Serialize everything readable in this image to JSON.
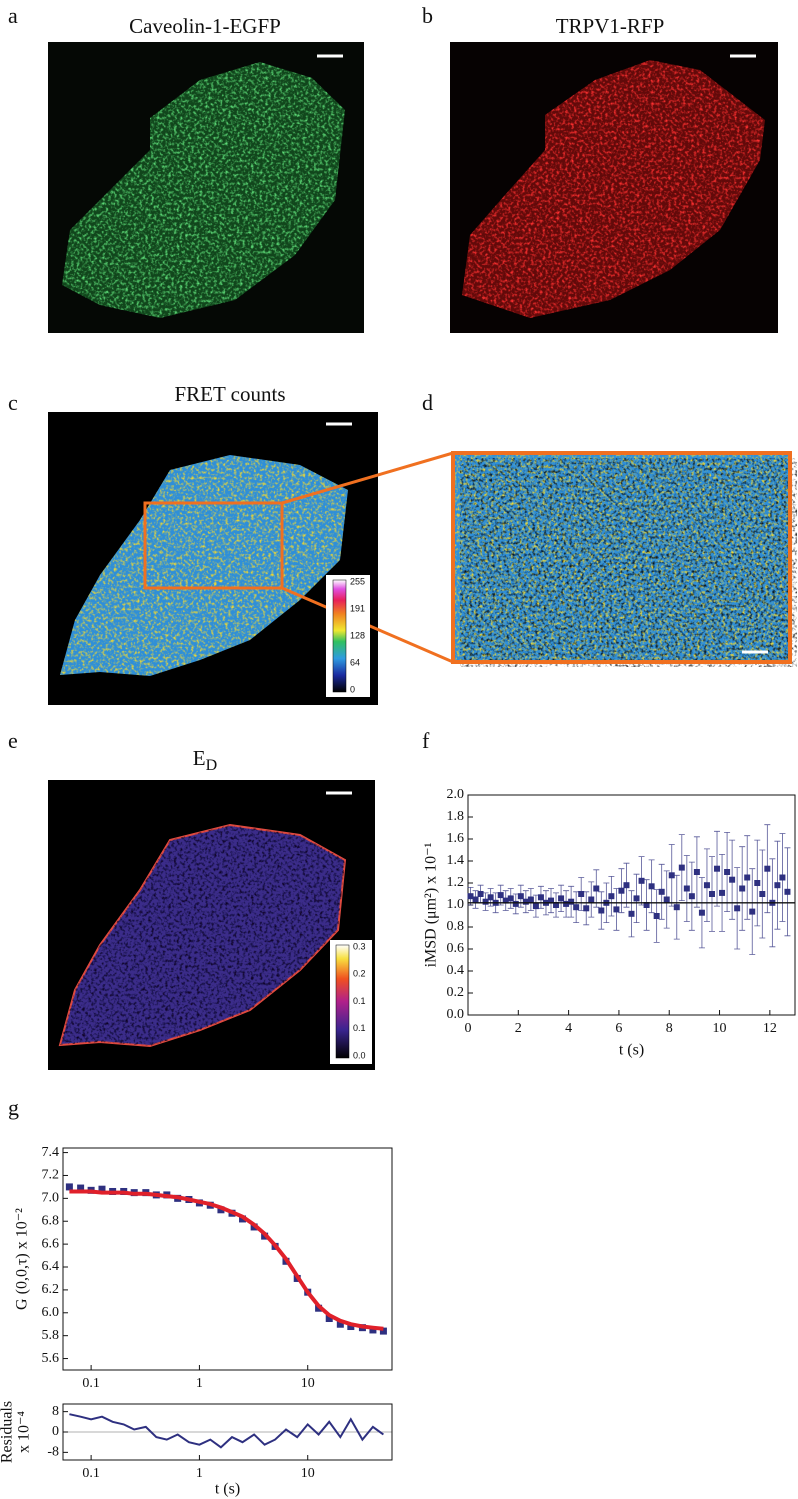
{
  "panels": {
    "a": {
      "letter": "a",
      "title": "Caveolin-1-EGFP"
    },
    "b": {
      "letter": "b",
      "title": "TRPV1-RFP"
    },
    "c": {
      "letter": "c",
      "title": "FRET counts",
      "colorbar_labels": [
        "255",
        "191",
        "128",
        "64",
        "0"
      ]
    },
    "d": {
      "letter": "d"
    },
    "e": {
      "letter": "e",
      "title": "E",
      "title_sub": "D",
      "colorbar_labels": [
        "0.3",
        "0.2",
        "0.1",
        "0.1",
        "0.0"
      ]
    }
  },
  "chart_data": [
    {
      "type": "scatter",
      "letter": "f",
      "color": "#2e3080",
      "x": [
        0.1,
        0.3,
        0.5,
        0.7,
        0.9,
        1.1,
        1.3,
        1.5,
        1.7,
        1.9,
        2.1,
        2.3,
        2.5,
        2.7,
        2.9,
        3.1,
        3.3,
        3.5,
        3.7,
        3.9,
        4.1,
        4.3,
        4.5,
        4.7,
        4.9,
        5.1,
        5.3,
        5.5,
        5.7,
        5.9,
        6.1,
        6.3,
        6.5,
        6.7,
        6.9,
        7.1,
        7.3,
        7.5,
        7.7,
        7.9,
        8.1,
        8.3,
        8.5,
        8.7,
        8.9,
        9.1,
        9.3,
        9.5,
        9.7,
        9.9,
        10.1,
        10.3,
        10.5,
        10.7,
        10.9,
        11.1,
        11.3,
        11.5,
        11.7,
        11.9,
        12.1,
        12.3,
        12.5,
        12.7
      ],
      "values": [
        1.08,
        1.05,
        1.1,
        1.03,
        1.07,
        1.02,
        1.09,
        1.04,
        1.06,
        1.01,
        1.08,
        1.03,
        1.05,
        0.99,
        1.07,
        1.02,
        1.04,
        1.0,
        1.06,
        1.01,
        1.03,
        0.98,
        1.1,
        0.97,
        1.05,
        1.15,
        0.95,
        1.02,
        1.08,
        0.96,
        1.13,
        1.18,
        0.92,
        1.06,
        1.22,
        1.0,
        1.17,
        0.9,
        1.12,
        1.05,
        1.27,
        0.98,
        1.34,
        1.15,
        1.08,
        1.3,
        0.93,
        1.18,
        1.1,
        1.33,
        1.11,
        1.3,
        1.23,
        0.97,
        1.15,
        1.25,
        0.94,
        1.2,
        1.1,
        1.33,
        1.02,
        1.18,
        1.25,
        1.12
      ],
      "errors": [
        0.08,
        0.08,
        0.08,
        0.08,
        0.08,
        0.09,
        0.09,
        0.09,
        0.09,
        0.09,
        0.1,
        0.1,
        0.1,
        0.1,
        0.1,
        0.11,
        0.11,
        0.11,
        0.12,
        0.12,
        0.14,
        0.14,
        0.15,
        0.15,
        0.16,
        0.17,
        0.17,
        0.18,
        0.18,
        0.19,
        0.2,
        0.2,
        0.21,
        0.22,
        0.22,
        0.23,
        0.24,
        0.24,
        0.25,
        0.26,
        0.28,
        0.29,
        0.3,
        0.3,
        0.31,
        0.32,
        0.32,
        0.33,
        0.34,
        0.34,
        0.35,
        0.36,
        0.36,
        0.37,
        0.38,
        0.38,
        0.39,
        0.39,
        0.4,
        0.4,
        0.4,
        0.4,
        0.4,
        0.4
      ],
      "fit": 1.02,
      "fit_color": "#111111",
      "xlim": [
        0,
        13
      ],
      "ylim": [
        0,
        2
      ],
      "xticks": [
        0,
        2,
        4,
        6,
        8,
        10,
        12
      ],
      "yticks": [
        {
          "value": 0,
          "label": "0.0"
        },
        0.2,
        0.4,
        0.6,
        0.8,
        {
          "value": 1,
          "label": "1.0"
        },
        1.2,
        1.4,
        1.6,
        1.8,
        {
          "value": 2,
          "label": "2.0"
        }
      ],
      "xlabel": "t (s)",
      "ylabel": "iMSD (μm²) x 10⁻¹"
    },
    {
      "type": "scatter",
      "letter": "g",
      "color": "#2e3080",
      "fit_color": "#e0202a",
      "xscale": "log",
      "x": [
        0.063,
        0.08,
        0.1,
        0.126,
        0.158,
        0.2,
        0.25,
        0.32,
        0.4,
        0.5,
        0.63,
        0.8,
        1,
        1.26,
        1.58,
        2,
        2.5,
        3.2,
        4,
        5,
        6.3,
        8,
        10,
        12.6,
        15.8,
        20,
        25,
        32,
        40,
        50
      ],
      "values": [
        7.1,
        7.09,
        7.07,
        7.08,
        7.06,
        7.06,
        7.05,
        7.05,
        7.03,
        7.03,
        7.0,
        6.99,
        6.96,
        6.94,
        6.9,
        6.87,
        6.82,
        6.75,
        6.67,
        6.58,
        6.45,
        6.3,
        6.18,
        6.04,
        5.95,
        5.9,
        5.88,
        5.87,
        5.85,
        5.84
      ],
      "fit": [
        7.06,
        7.06,
        7.06,
        7.05,
        7.05,
        7.05,
        7.04,
        7.04,
        7.03,
        7.02,
        7.01,
        6.99,
        6.97,
        6.95,
        6.92,
        6.88,
        6.84,
        6.77,
        6.69,
        6.59,
        6.47,
        6.32,
        6.18,
        6.06,
        5.98,
        5.93,
        5.9,
        5.88,
        5.87,
        5.86
      ],
      "xlim": [
        0.055,
        60
      ],
      "ylim": [
        5.5,
        7.44
      ],
      "xticks": [
        0.1,
        1,
        10
      ],
      "yticks": [
        5.6,
        5.8,
        {
          "value": 6,
          "label": "6.0"
        },
        6.2,
        6.4,
        6.6,
        6.8,
        {
          "value": 7,
          "label": "7.0"
        },
        7.2,
        7.4
      ],
      "ylabel": "G (0,0,τ) x 10⁻²"
    },
    {
      "type": "line",
      "color": "#2e3080",
      "xscale": "log",
      "x": [
        0.063,
        0.08,
        0.1,
        0.126,
        0.158,
        0.2,
        0.25,
        0.32,
        0.4,
        0.5,
        0.63,
        0.8,
        1,
        1.26,
        1.58,
        2,
        2.5,
        3.2,
        4,
        5,
        6.3,
        8,
        10,
        12.6,
        15.8,
        20,
        25,
        32,
        40,
        50
      ],
      "values": [
        7,
        6,
        5,
        6,
        4,
        3,
        1,
        2,
        -2,
        -3,
        -1,
        -4,
        -5,
        -3,
        -6,
        -2,
        -4,
        -1,
        -5,
        -3,
        1,
        -2,
        3,
        -1,
        4,
        -2,
        5,
        -3,
        2,
        -1
      ],
      "xlim": [
        0.055,
        60
      ],
      "ylim": [
        -11,
        11
      ],
      "xticks": [
        0.1,
        1,
        10
      ],
      "yticks": [
        -8,
        0,
        8
      ],
      "xlabel": "t (s)",
      "ylabel": [
        "Residuals",
        "x 10⁻⁴"
      ]
    }
  ]
}
